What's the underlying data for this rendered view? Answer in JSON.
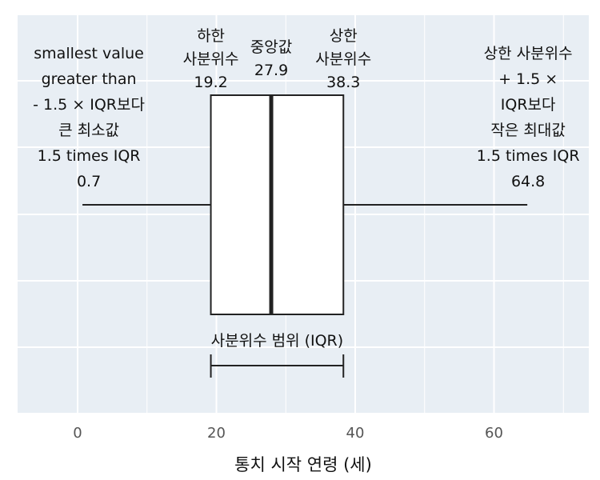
{
  "chart_data": {
    "type": "box",
    "xlabel": "통치 시작 연령 (세)",
    "xlim": [
      -9,
      73
    ],
    "xticks": [
      0,
      20,
      40,
      60
    ],
    "grid": true,
    "box": {
      "whisker_low": 0.7,
      "q1": 19.2,
      "median": 27.9,
      "q3": 38.3,
      "whisker_high": 64.8
    },
    "annotations": {
      "q1": [
        "하한",
        "사분위수",
        "19.2"
      ],
      "median": [
        "중앙값",
        "27.9"
      ],
      "q3": [
        "상한",
        "사분위수",
        "38.3"
      ],
      "whisker_low": [
        "smallest value",
        "greater than",
        "- 1.5 × IQR보다",
        "큰 최소값",
        "1.5 times IQR",
        "0.7"
      ],
      "whisker_high": [
        "상한 사분위수",
        "+ 1.5 ×",
        "IQR보다",
        "작은 최대값",
        "1.5 times IQR",
        "64.8"
      ],
      "iqr": "사분위수 범위 (IQR)"
    },
    "colors": {
      "panel": "#e8eef4",
      "grid": "#ffffff",
      "line": "#222222",
      "box_fill": "#ffffff"
    }
  }
}
